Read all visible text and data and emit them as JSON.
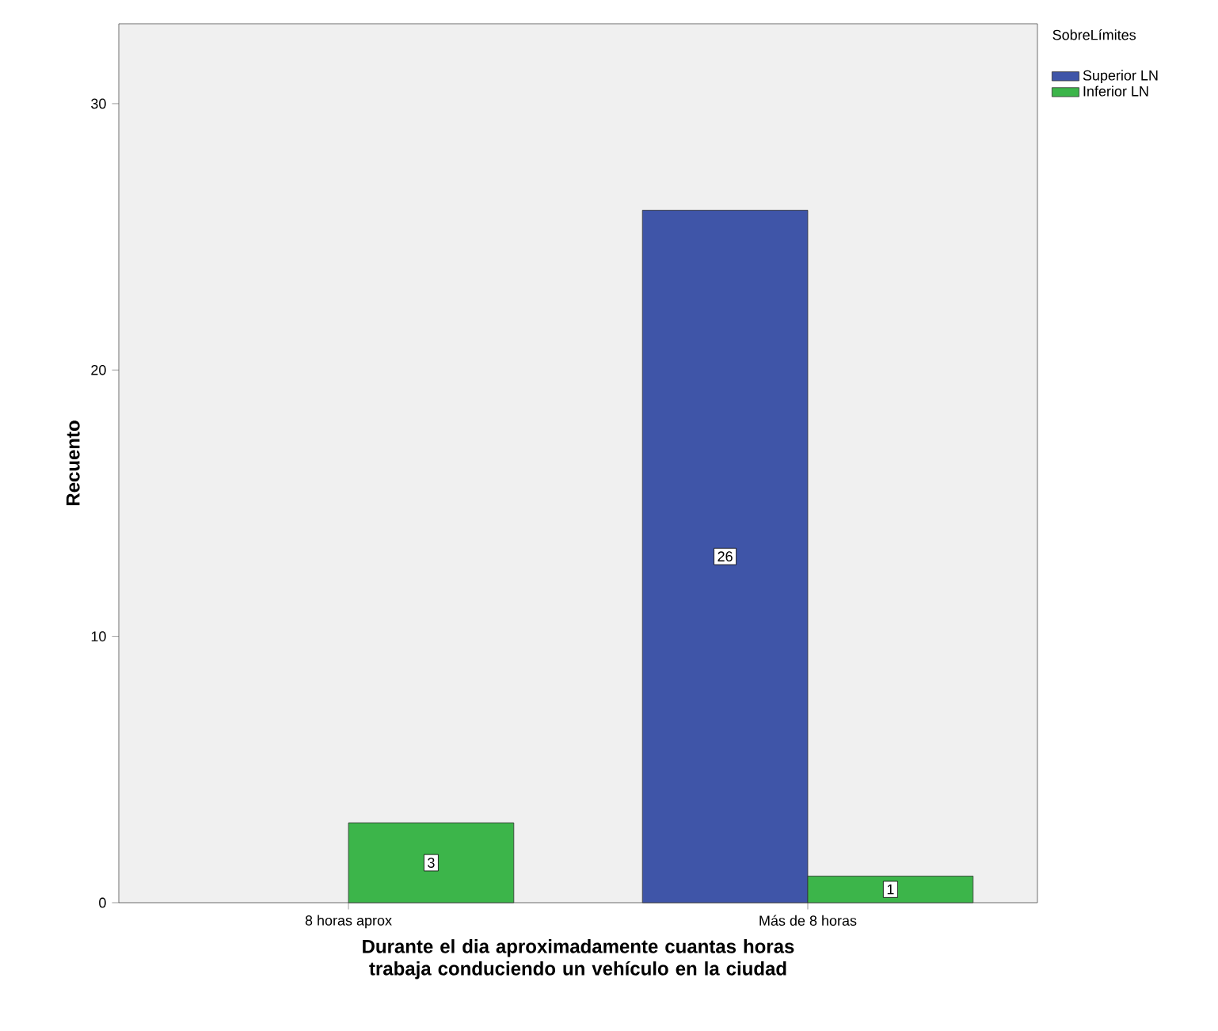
{
  "chart_data": {
    "type": "bar",
    "xlabel": "Durante el dia aproximadamente cuantas horas trabaja conduciendo un vehículo en la ciudad",
    "ylabel": "Recuento",
    "legend_title": "SobreLímites",
    "categories": [
      "8 horas aprox",
      "Más de 8 horas"
    ],
    "series": [
      {
        "name": "Superior LN",
        "color": "#3f55a8",
        "values": [
          null,
          26
        ]
      },
      {
        "name": "Inferior LN",
        "color": "#3cb54a",
        "values": [
          3,
          1
        ]
      }
    ],
    "ylim": [
      0,
      33
    ],
    "yticks": [
      0,
      10,
      20,
      30
    ],
    "data_labels": true,
    "legend": "top right",
    "grid": false
  }
}
